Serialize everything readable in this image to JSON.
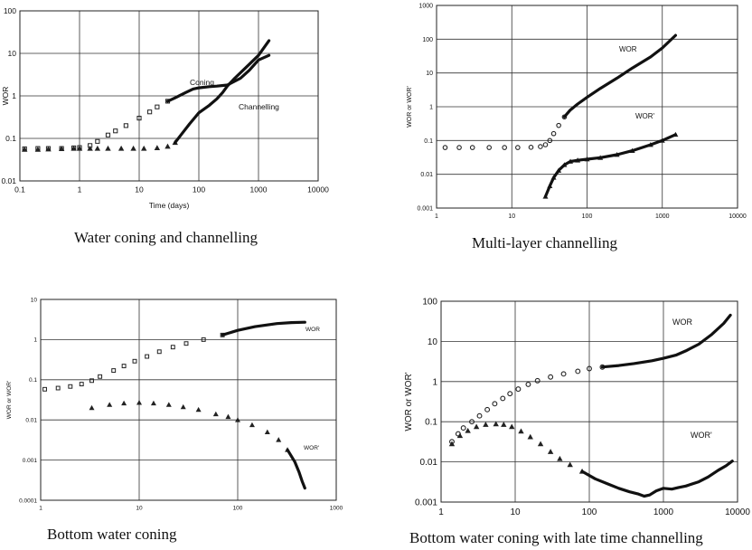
{
  "chart_data": [
    {
      "type": "scatter",
      "caption": "Water coning and channelling",
      "xlabel": "Time (days)",
      "ylabel": "WOR",
      "x_ticks": [
        "0.1",
        "1",
        "10",
        "100",
        "1000",
        "10000"
      ],
      "y_ticks": [
        "0.01",
        "0.1",
        "1",
        "10",
        "100"
      ],
      "xlim": [
        0.1,
        10000
      ],
      "ylim": [
        0.01,
        100
      ],
      "grid": true,
      "annotations": [
        "Coning",
        "Channelling"
      ],
      "series": [
        {
          "name": "Coning",
          "style": "squares-then-line",
          "points": [
            [
              0.12,
              0.057
            ],
            [
              0.2,
              0.058
            ],
            [
              0.3,
              0.058
            ],
            [
              0.5,
              0.058
            ],
            [
              0.8,
              0.06
            ],
            [
              1.0,
              0.061
            ],
            [
              1.5,
              0.068
            ],
            [
              2.0,
              0.085
            ],
            [
              3.0,
              0.12
            ],
            [
              4.0,
              0.15
            ],
            [
              6.0,
              0.2
            ],
            [
              10,
              0.3
            ],
            [
              15,
              0.42
            ],
            [
              20,
              0.55
            ],
            [
              30,
              0.75
            ],
            [
              40,
              0.9
            ],
            [
              60,
              1.2
            ],
            [
              80,
              1.45
            ],
            [
              100,
              1.55
            ],
            [
              150,
              1.65
            ],
            [
              200,
              1.7
            ],
            [
              300,
              1.8
            ],
            [
              500,
              2.6
            ],
            [
              700,
              4.0
            ],
            [
              1000,
              7.0
            ],
            [
              1500,
              9.0
            ]
          ]
        },
        {
          "name": "Channelling",
          "style": "triangles-then-line",
          "points": [
            [
              0.12,
              0.055
            ],
            [
              0.2,
              0.055
            ],
            [
              0.3,
              0.056
            ],
            [
              0.5,
              0.057
            ],
            [
              0.8,
              0.058
            ],
            [
              1.0,
              0.058
            ],
            [
              1.5,
              0.058
            ],
            [
              2.0,
              0.058
            ],
            [
              3.0,
              0.058
            ],
            [
              5.0,
              0.058
            ],
            [
              8.0,
              0.058
            ],
            [
              12,
              0.058
            ],
            [
              20,
              0.06
            ],
            [
              30,
              0.065
            ],
            [
              40,
              0.08
            ],
            [
              50,
              0.12
            ],
            [
              70,
              0.22
            ],
            [
              100,
              0.4
            ],
            [
              150,
              0.6
            ],
            [
              200,
              0.85
            ],
            [
              250,
              1.2
            ],
            [
              300,
              1.7
            ],
            [
              400,
              2.6
            ],
            [
              600,
              4.5
            ],
            [
              1000,
              9.0
            ],
            [
              1500,
              20.0
            ]
          ]
        }
      ]
    },
    {
      "type": "scatter",
      "caption": "Multi-layer channelling",
      "xlabel": "",
      "ylabel": "WOR or WOR'",
      "x_ticks": [
        "1",
        "10",
        "100",
        "1000",
        "10000"
      ],
      "y_ticks": [
        "0.001",
        "0.01",
        "0.1",
        "1",
        "10",
        "100",
        "1000"
      ],
      "xlim": [
        1,
        10000
      ],
      "ylim": [
        0.001,
        1000
      ],
      "grid": true,
      "annotations": [
        "WOR",
        "WOR'"
      ],
      "series": [
        {
          "name": "WOR",
          "style": "circles-then-line",
          "points": [
            [
              1.3,
              0.062
            ],
            [
              2,
              0.062
            ],
            [
              3,
              0.062
            ],
            [
              5,
              0.062
            ],
            [
              8,
              0.062
            ],
            [
              12,
              0.062
            ],
            [
              18,
              0.063
            ],
            [
              24,
              0.066
            ],
            [
              28,
              0.075
            ],
            [
              32,
              0.1
            ],
            [
              36,
              0.16
            ],
            [
              42,
              0.28
            ],
            [
              50,
              0.5
            ],
            [
              60,
              0.8
            ],
            [
              75,
              1.2
            ],
            [
              100,
              1.9
            ],
            [
              150,
              3.5
            ],
            [
              250,
              7.0
            ],
            [
              400,
              14.0
            ],
            [
              700,
              30.0
            ],
            [
              1000,
              55.0
            ],
            [
              1500,
              130.0
            ]
          ]
        },
        {
          "name": "WOR'",
          "style": "triangles-then-line",
          "points": [
            [
              28,
              0.0022
            ],
            [
              32,
              0.0045
            ],
            [
              36,
              0.008
            ],
            [
              42,
              0.013
            ],
            [
              50,
              0.019
            ],
            [
              60,
              0.024
            ],
            [
              75,
              0.026
            ],
            [
              100,
              0.028
            ],
            [
              150,
              0.031
            ],
            [
              250,
              0.038
            ],
            [
              400,
              0.05
            ],
            [
              700,
              0.075
            ],
            [
              1000,
              0.1
            ],
            [
              1500,
              0.15
            ]
          ]
        }
      ]
    },
    {
      "type": "scatter",
      "caption": "Bottom water coning",
      "xlabel": "",
      "ylabel": "WOR or WOR'",
      "x_ticks": [
        "1",
        "10",
        "100",
        "1000"
      ],
      "y_ticks": [
        "0.0001",
        "0.001",
        "0.01",
        "0.1",
        "1",
        "10"
      ],
      "xlim": [
        1,
        1000
      ],
      "ylim": [
        0.0001,
        10
      ],
      "grid": true,
      "annotations": [
        "WOR",
        "WOR'"
      ],
      "series": [
        {
          "name": "WOR",
          "style": "squares-then-line",
          "points": [
            [
              1.1,
              0.058
            ],
            [
              1.5,
              0.062
            ],
            [
              2,
              0.068
            ],
            [
              2.6,
              0.078
            ],
            [
              3.3,
              0.095
            ],
            [
              4,
              0.12
            ],
            [
              5.5,
              0.17
            ],
            [
              7,
              0.22
            ],
            [
              9,
              0.29
            ],
            [
              12,
              0.38
            ],
            [
              16,
              0.5
            ],
            [
              22,
              0.65
            ],
            [
              30,
              0.8
            ],
            [
              45,
              1.0
            ],
            [
              70,
              1.3
            ],
            [
              100,
              1.7
            ],
            [
              150,
              2.1
            ],
            [
              250,
              2.5
            ],
            [
              350,
              2.65
            ],
            [
              480,
              2.7
            ]
          ]
        },
        {
          "name": "WOR'",
          "style": "triangles-then-line",
          "points": [
            [
              3.3,
              0.02
            ],
            [
              5,
              0.024
            ],
            [
              7,
              0.026
            ],
            [
              10,
              0.027
            ],
            [
              14,
              0.026
            ],
            [
              20,
              0.024
            ],
            [
              28,
              0.021
            ],
            [
              40,
              0.018
            ],
            [
              60,
              0.014
            ],
            [
              80,
              0.012
            ],
            [
              100,
              0.01
            ],
            [
              140,
              0.0075
            ],
            [
              200,
              0.005
            ],
            [
              260,
              0.0032
            ],
            [
              320,
              0.0018
            ],
            [
              380,
              0.0009
            ],
            [
              420,
              0.0005
            ],
            [
              450,
              0.0003
            ],
            [
              480,
              0.0002
            ]
          ]
        }
      ]
    },
    {
      "type": "scatter",
      "caption": "Bottom water coning with late time channelling",
      "xlabel": "",
      "ylabel": "WOR or WOR'",
      "x_ticks": [
        "1",
        "10",
        "100",
        "1000",
        "10000"
      ],
      "y_ticks": [
        "0.001",
        "0.01",
        "0.1",
        "1",
        "10",
        "100"
      ],
      "xlim": [
        1,
        10000
      ],
      "ylim": [
        0.001,
        100
      ],
      "grid": true,
      "annotations": [
        "WOR",
        "WOR'"
      ],
      "series": [
        {
          "name": "WOR",
          "style": "circles-then-line",
          "points": [
            [
              1.4,
              0.032
            ],
            [
              1.7,
              0.05
            ],
            [
              2,
              0.07
            ],
            [
              2.6,
              0.1
            ],
            [
              3.3,
              0.14
            ],
            [
              4.2,
              0.2
            ],
            [
              5.3,
              0.28
            ],
            [
              6.8,
              0.38
            ],
            [
              8.5,
              0.5
            ],
            [
              11,
              0.65
            ],
            [
              15,
              0.85
            ],
            [
              20,
              1.05
            ],
            [
              30,
              1.3
            ],
            [
              45,
              1.55
            ],
            [
              70,
              1.8
            ],
            [
              100,
              2.1
            ],
            [
              150,
              2.3
            ],
            [
              250,
              2.5
            ],
            [
              400,
              2.8
            ],
            [
              700,
              3.3
            ],
            [
              1000,
              3.8
            ],
            [
              1500,
              4.6
            ],
            [
              2000,
              5.8
            ],
            [
              3000,
              8.5
            ],
            [
              4500,
              15.0
            ],
            [
              6500,
              28.0
            ],
            [
              8000,
              45.0
            ]
          ]
        },
        {
          "name": "WOR'",
          "style": "triangles-then-line",
          "points": [
            [
              1.4,
              0.028
            ],
            [
              1.8,
              0.045
            ],
            [
              2.3,
              0.06
            ],
            [
              3,
              0.075
            ],
            [
              4,
              0.085
            ],
            [
              5.5,
              0.088
            ],
            [
              7,
              0.085
            ],
            [
              9,
              0.075
            ],
            [
              12,
              0.058
            ],
            [
              16,
              0.042
            ],
            [
              22,
              0.028
            ],
            [
              30,
              0.018
            ],
            [
              40,
              0.012
            ],
            [
              55,
              0.0085
            ],
            [
              80,
              0.0058
            ],
            [
              120,
              0.0038
            ],
            [
              180,
              0.0028
            ],
            [
              250,
              0.0022
            ],
            [
              350,
              0.0018
            ],
            [
              450,
              0.0016
            ],
            [
              550,
              0.0014
            ],
            [
              650,
              0.0015
            ],
            [
              800,
              0.0019
            ],
            [
              1000,
              0.0022
            ],
            [
              1300,
              0.0021
            ],
            [
              1600,
              0.0023
            ],
            [
              2000,
              0.0025
            ],
            [
              3000,
              0.0032
            ],
            [
              4000,
              0.0042
            ],
            [
              5500,
              0.0062
            ],
            [
              7000,
              0.008
            ],
            [
              8500,
              0.0105
            ]
          ]
        }
      ]
    }
  ]
}
